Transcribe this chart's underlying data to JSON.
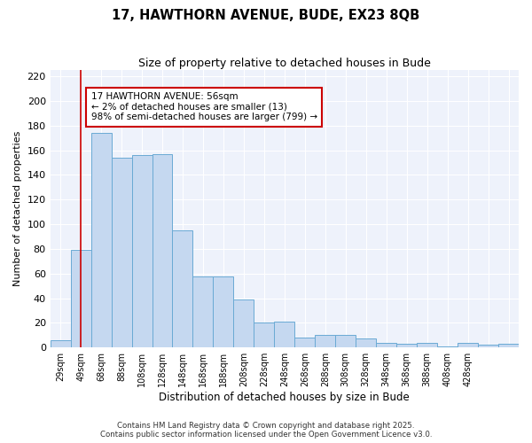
{
  "title1": "17, HAWTHORN AVENUE, BUDE, EX23 8QB",
  "title2": "Size of property relative to detached houses in Bude",
  "xlabel": "Distribution of detached houses by size in Bude",
  "ylabel": "Number of detached properties",
  "bar_values": [
    6,
    79,
    174,
    154,
    156,
    157,
    95,
    58,
    58,
    39,
    20,
    21,
    8,
    10,
    10,
    7,
    4,
    3,
    4,
    1,
    4,
    2,
    3
  ],
  "bar_labels": [
    "29sqm",
    "49sqm",
    "68sqm",
    "88sqm",
    "108sqm",
    "128sqm",
    "148sqm",
    "168sqm",
    "188sqm",
    "208sqm",
    "228sqm",
    "248sqm",
    "268sqm",
    "288sqm",
    "308sqm",
    "328sqm",
    "348sqm",
    "368sqm",
    "388sqm",
    "408sqm",
    "428sqm",
    "",
    ""
  ],
  "bar_color": "#c5d8f0",
  "bar_edge_color": "#6aaad4",
  "annotation_text": "17 HAWTHORN AVENUE: 56sqm\n← 2% of detached houses are smaller (13)\n98% of semi-detached houses are larger (799) →",
  "annotation_box_color": "#ffffff",
  "annotation_box_edge_color": "#cc0000",
  "redline_x": 1.0,
  "ylim": [
    0,
    225
  ],
  "yticks": [
    0,
    20,
    40,
    60,
    80,
    100,
    120,
    140,
    160,
    180,
    200,
    220
  ],
  "bg_color": "#eef2fb",
  "grid_color": "#ffffff",
  "footer1": "Contains HM Land Registry data © Crown copyright and database right 2025.",
  "footer2": "Contains public sector information licensed under the Open Government Licence v3.0."
}
